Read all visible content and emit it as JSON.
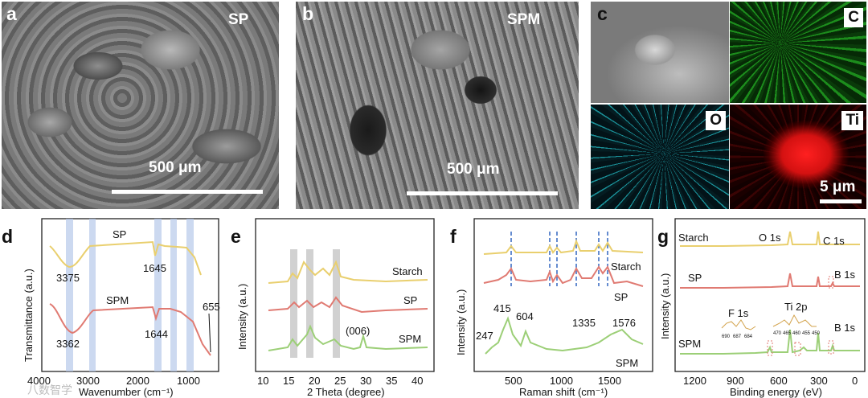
{
  "panel_a": {
    "letter": "a",
    "label": "SP",
    "scale": "500 μm"
  },
  "panel_b": {
    "letter": "b",
    "label": "SPM",
    "scale": "500 μm"
  },
  "panel_c": {
    "letter": "c",
    "scale": "5 μm",
    "maps": [
      {
        "element": "C",
        "color": "#1c8c1c"
      },
      {
        "element": "O",
        "color": "#1a8f97"
      },
      {
        "element": "Ti",
        "color": "#ff2020"
      }
    ]
  },
  "panel_d": {
    "letter": "d",
    "xlabel": "Wavenumber (cm⁻¹)",
    "ylabel": "Transmittance (a.u.)",
    "ticks": [
      "4000",
      "3000",
      "2000",
      "1000"
    ],
    "series": [
      {
        "name": "SP",
        "color": "#e9cf6e"
      },
      {
        "name": "SPM",
        "color": "#e07a72"
      }
    ],
    "annotations": [
      "3375",
      "1645",
      "3362",
      "1644",
      "655"
    ]
  },
  "panel_e": {
    "letter": "e",
    "xlabel": "2 Theta (degree)",
    "ylabel": "Intensity (a.u.)",
    "ticks": [
      "10",
      "15",
      "20",
      "25",
      "30",
      "35",
      "40"
    ],
    "series": [
      {
        "name": "Starch",
        "color": "#e9cf6e"
      },
      {
        "name": "SP",
        "color": "#e07a72"
      },
      {
        "name": "SPM",
        "color": "#9ccf77"
      }
    ],
    "annotations": [
      "(006)"
    ]
  },
  "panel_f": {
    "letter": "f",
    "xlabel": "Raman shift (cm⁻¹)",
    "ylabel": "Intensity (a.u.)",
    "ticks": [
      "500",
      "1000",
      "1500"
    ],
    "series": [
      {
        "name": "Starch",
        "color": "#e9cf6e"
      },
      {
        "name": "SP",
        "color": "#e07a72"
      },
      {
        "name": "SPM",
        "color": "#9ccf77"
      }
    ],
    "annotations": [
      "247",
      "415",
      "604",
      "1335",
      "1576"
    ]
  },
  "panel_g": {
    "letter": "g",
    "xlabel": "Binding energy  (eV)",
    "ylabel": "Intensity (a.u.)",
    "ticks": [
      "1200",
      "900",
      "600",
      "300",
      "0"
    ],
    "series": [
      {
        "name": "Starch",
        "color": "#e9cf6e"
      },
      {
        "name": "SP",
        "color": "#e07a72"
      },
      {
        "name": "SPM",
        "color": "#9ccf77"
      }
    ],
    "annotations": [
      "O 1s",
      "C 1s",
      "B 1s",
      "B 1s",
      "F 1s",
      "Ti 2p"
    ],
    "inset_ticks_f": [
      "690",
      "687",
      "684"
    ],
    "inset_ticks_ti": [
      "470",
      "465",
      "460",
      "455",
      "450"
    ]
  },
  "watermark": "八数智学"
}
